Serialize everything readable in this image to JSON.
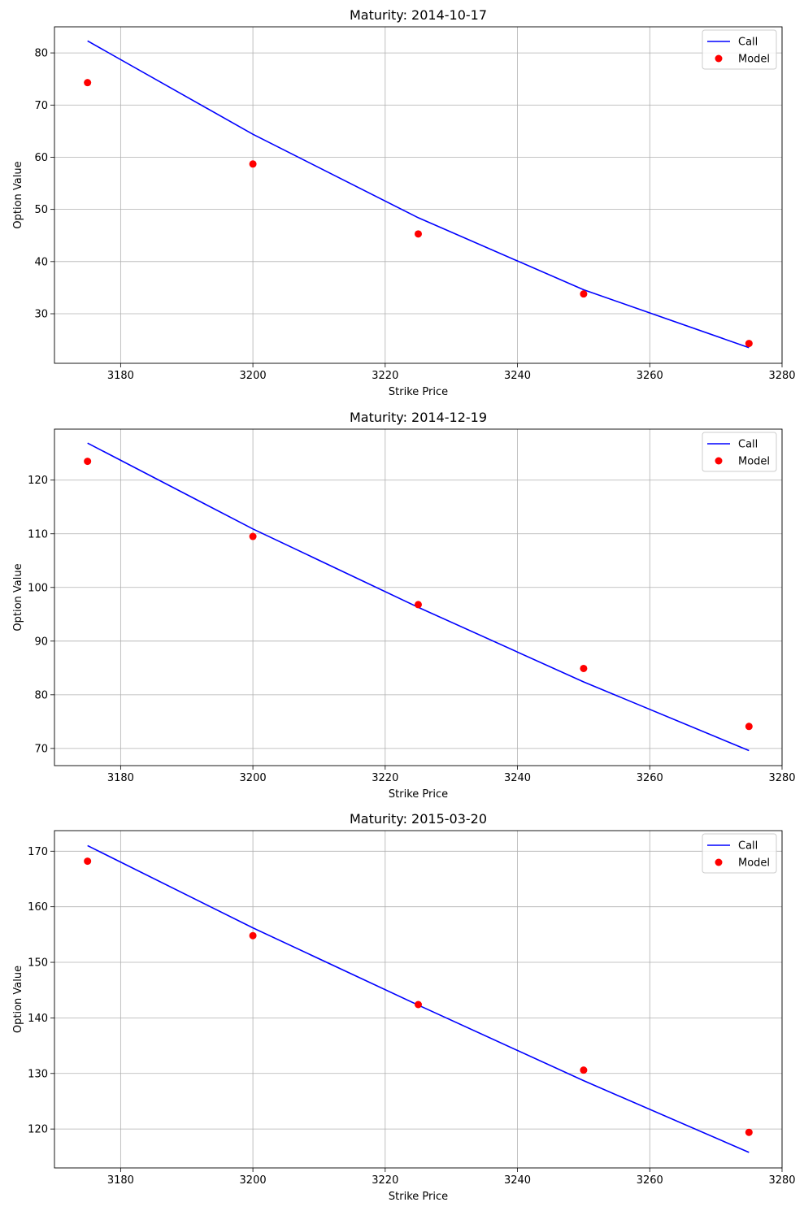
{
  "chart_data": [
    {
      "type": "line",
      "title": "Maturity: 2014-10-17",
      "xlabel": "Strike Price",
      "ylabel": "Option Value",
      "xlim": [
        3170,
        3280
      ],
      "ylim": [
        20.5,
        85.0
      ],
      "xticks": [
        3180,
        3200,
        3220,
        3240,
        3260,
        3280
      ],
      "yticks": [
        30,
        40,
        50,
        60,
        70,
        80
      ],
      "grid": true,
      "legend_position": "top-right",
      "x": [
        3175,
        3200,
        3225,
        3250,
        3275
      ],
      "series": [
        {
          "name": "Call",
          "style": "line",
          "color": "#0000ff",
          "values": [
            82.3,
            64.4,
            48.4,
            34.6,
            23.5
          ]
        },
        {
          "name": "Model",
          "style": "markers",
          "color": "#ff0000",
          "values": [
            74.3,
            58.7,
            45.3,
            33.8,
            24.3
          ]
        }
      ]
    },
    {
      "type": "line",
      "title": "Maturity: 2014-12-19",
      "xlabel": "Strike Price",
      "ylabel": "Option Value",
      "xlim": [
        3170,
        3280
      ],
      "ylim": [
        66.8,
        129.5
      ],
      "xticks": [
        3180,
        3200,
        3220,
        3240,
        3260,
        3280
      ],
      "yticks": [
        70,
        80,
        90,
        100,
        110,
        120
      ],
      "grid": true,
      "legend_position": "top-right",
      "x": [
        3175,
        3200,
        3225,
        3250,
        3275
      ],
      "series": [
        {
          "name": "Call",
          "style": "line",
          "color": "#0000ff",
          "values": [
            126.9,
            110.9,
            96.3,
            82.4,
            69.6
          ]
        },
        {
          "name": "Model",
          "style": "markers",
          "color": "#ff0000",
          "values": [
            123.5,
            109.5,
            96.8,
            84.9,
            74.1
          ]
        }
      ]
    },
    {
      "type": "line",
      "title": "Maturity: 2015-03-20",
      "xlabel": "Strike Price",
      "ylabel": "Option Value",
      "xlim": [
        3170,
        3280
      ],
      "ylim": [
        113.0,
        173.7
      ],
      "xticks": [
        3180,
        3200,
        3220,
        3240,
        3260,
        3280
      ],
      "yticks": [
        120,
        130,
        140,
        150,
        160,
        170
      ],
      "grid": true,
      "legend_position": "top-right",
      "x": [
        3175,
        3200,
        3225,
        3250,
        3275
      ],
      "series": [
        {
          "name": "Call",
          "style": "line",
          "color": "#0000ff",
          "values": [
            171.0,
            156.2,
            142.3,
            128.7,
            115.8
          ]
        },
        {
          "name": "Model",
          "style": "markers",
          "color": "#ff0000",
          "values": [
            168.2,
            154.8,
            142.4,
            130.6,
            119.4
          ]
        }
      ]
    }
  ]
}
